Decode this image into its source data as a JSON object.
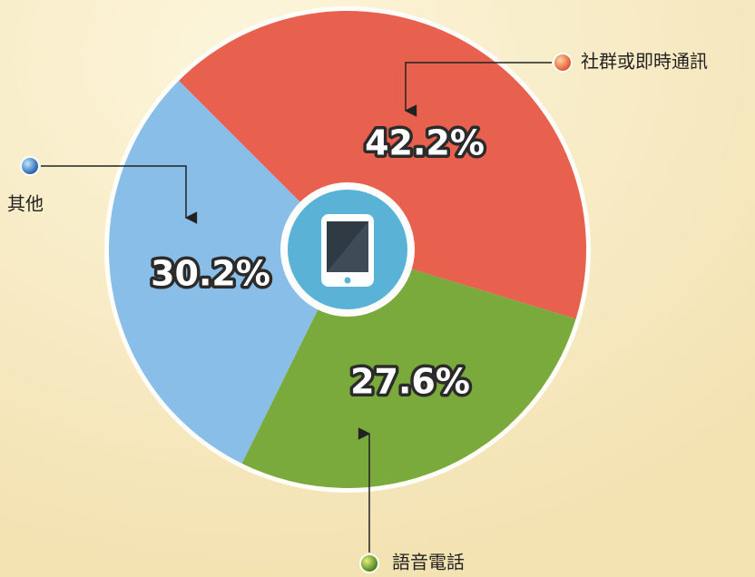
{
  "chart_data": {
    "type": "pie",
    "categories": [
      "社群或即時通訊",
      "語音電話",
      "其他"
    ],
    "values": [
      42.2,
      27.6,
      30.2
    ],
    "value_labels": [
      "42.2%",
      "27.6%",
      "30.2%"
    ],
    "colors": [
      "#e8604e",
      "#7aa93c",
      "#88bee7"
    ]
  }
}
